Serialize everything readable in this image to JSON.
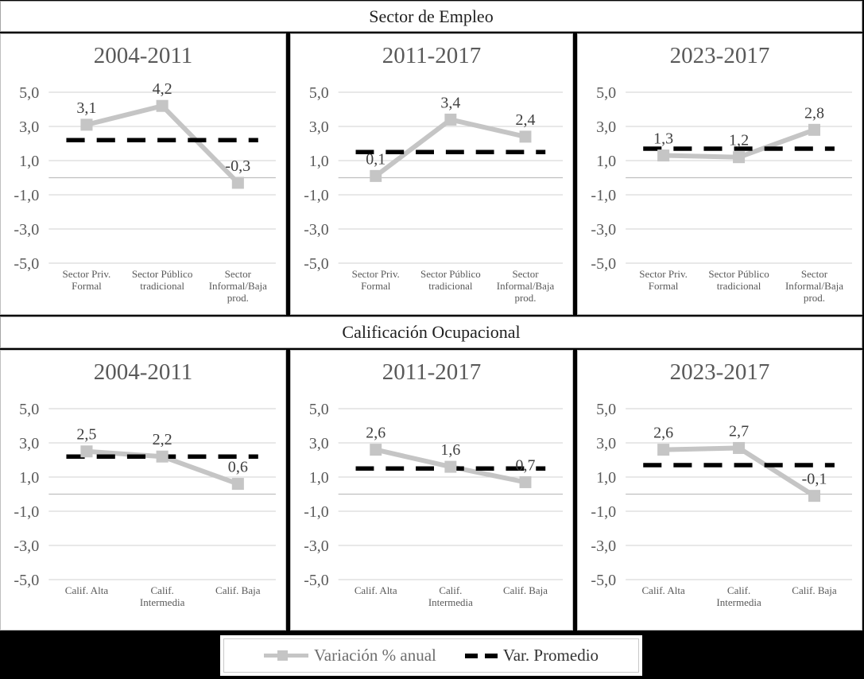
{
  "sections": [
    {
      "title": "Sector de Empleo"
    },
    {
      "title": "Calificación Ocupacional"
    }
  ],
  "legend": {
    "series1_label": "Variación % anual",
    "series2_label": "Var. Promedio"
  },
  "colors": {
    "page_bg": "#000000",
    "panel_bg": "#ffffff",
    "panel_border": "#bfbfbf",
    "band_border": "#a6a6a6",
    "gridline": "#d9d9d9",
    "axis_line": "#c0c0c0",
    "axis_text": "#595959",
    "data_label": "#3f3f3f",
    "series_line": "#c5c5c5",
    "avg_line": "#000000",
    "panel_title": "#595959"
  },
  "chart_data": [
    {
      "type": "line",
      "section": "Sector de Empleo",
      "title": "2004-2011",
      "categories": [
        "Sector Priv. Formal",
        "Sector Público tradicional",
        "Sector Informal/Baja prod."
      ],
      "category_lines": [
        [
          "Sector Priv.",
          "Formal"
        ],
        [
          "Sector Público",
          "tradicional"
        ],
        [
          "Sector",
          "Informal/Baja",
          "prod."
        ]
      ],
      "ylim": [
        -5,
        5
      ],
      "yticks": [
        5,
        3,
        1,
        -1,
        -3,
        -5
      ],
      "ytick_labels": [
        "5,0",
        "3,0",
        "1,0",
        "-1,0",
        "-3,0",
        "-5,0"
      ],
      "series": [
        {
          "name": "Variación % anual",
          "values": [
            3.1,
            4.2,
            -0.3
          ],
          "labels": [
            "3,1",
            "4,2",
            "-0,3"
          ]
        },
        {
          "name": "Var. Promedio",
          "style": "dashed",
          "value": 2.2
        }
      ]
    },
    {
      "type": "line",
      "section": "Sector de Empleo",
      "title": "2011-2017",
      "categories": [
        "Sector Priv. Formal",
        "Sector Público tradicional",
        "Sector Informal/Baja prod."
      ],
      "category_lines": [
        [
          "Sector Priv.",
          "Formal"
        ],
        [
          "Sector Público",
          "tradicional"
        ],
        [
          "Sector",
          "Informal/Baja",
          "prod."
        ]
      ],
      "ylim": [
        -5,
        5
      ],
      "yticks": [
        5,
        3,
        1,
        -1,
        -3,
        -5
      ],
      "ytick_labels": [
        "5,0",
        "3,0",
        "1,0",
        "-1,0",
        "-3,0",
        "-5,0"
      ],
      "series": [
        {
          "name": "Variación % anual",
          "values": [
            0.1,
            3.4,
            2.4
          ],
          "labels": [
            "0,1",
            "3,4",
            "2,4"
          ]
        },
        {
          "name": "Var. Promedio",
          "style": "dashed",
          "value": 1.5
        }
      ]
    },
    {
      "type": "line",
      "section": "Sector de Empleo",
      "title": "2023-2017",
      "categories": [
        "Sector Priv. Formal",
        "Sector Público tradicional",
        "Sector Informal/Baja prod."
      ],
      "category_lines": [
        [
          "Sector Priv.",
          "Formal"
        ],
        [
          "Sector Público",
          "tradicional"
        ],
        [
          "Sector",
          "Informal/Baja",
          "prod."
        ]
      ],
      "ylim": [
        -5,
        5
      ],
      "yticks": [
        5,
        3,
        1,
        -1,
        -3,
        -5
      ],
      "ytick_labels": [
        "5,0",
        "3,0",
        "1,0",
        "-1,0",
        "-3,0",
        "-5,0"
      ],
      "series": [
        {
          "name": "Variación % anual",
          "values": [
            1.3,
            1.2,
            2.8
          ],
          "labels": [
            "1,3",
            "1,2",
            "2,8"
          ]
        },
        {
          "name": "Var. Promedio",
          "style": "dashed",
          "value": 1.7
        }
      ]
    },
    {
      "type": "line",
      "section": "Calificación Ocupacional",
      "title": "2004-2011",
      "categories": [
        "Calif. Alta",
        "Calif. Intermedia",
        "Calif. Baja"
      ],
      "category_lines": [
        [
          "Calif. Alta"
        ],
        [
          "Calif.",
          "Intermedia"
        ],
        [
          "Calif. Baja"
        ]
      ],
      "ylim": [
        -5,
        5
      ],
      "yticks": [
        5,
        3,
        1,
        -1,
        -3,
        -5
      ],
      "ytick_labels": [
        "5,0",
        "3,0",
        "1,0",
        "-1,0",
        "-3,0",
        "-5,0"
      ],
      "series": [
        {
          "name": "Variación % anual",
          "values": [
            2.5,
            2.2,
            0.6
          ],
          "labels": [
            "2,5",
            "2,2",
            "0,6"
          ]
        },
        {
          "name": "Var. Promedio",
          "style": "dashed",
          "value": 2.2
        }
      ]
    },
    {
      "type": "line",
      "section": "Calificación Ocupacional",
      "title": "2011-2017",
      "categories": [
        "Calif. Alta",
        "Calif. Intermedia",
        "Calif. Baja"
      ],
      "category_lines": [
        [
          "Calif. Alta"
        ],
        [
          "Calif.",
          "Intermedia"
        ],
        [
          "Calif. Baja"
        ]
      ],
      "ylim": [
        -5,
        5
      ],
      "yticks": [
        5,
        3,
        1,
        -1,
        -3,
        -5
      ],
      "ytick_labels": [
        "5,0",
        "3,0",
        "1,0",
        "-1,0",
        "-3,0",
        "-5,0"
      ],
      "series": [
        {
          "name": "Variación % anual",
          "values": [
            2.6,
            1.6,
            0.7
          ],
          "labels": [
            "2,6",
            "1,6",
            "0,7"
          ]
        },
        {
          "name": "Var. Promedio",
          "style": "dashed",
          "value": 1.5
        }
      ]
    },
    {
      "type": "line",
      "section": "Calificación Ocupacional",
      "title": "2023-2017",
      "categories": [
        "Calif. Alta",
        "Calif. Intermedia",
        "Calif. Baja"
      ],
      "category_lines": [
        [
          "Calif. Alta"
        ],
        [
          "Calif.",
          "Intermedia"
        ],
        [
          "Calif. Baja"
        ]
      ],
      "ylim": [
        -5,
        5
      ],
      "yticks": [
        5,
        3,
        1,
        -1,
        -3,
        -5
      ],
      "ytick_labels": [
        "5,0",
        "3,0",
        "1,0",
        "-1,0",
        "-3,0",
        "-5,0"
      ],
      "series": [
        {
          "name": "Variación % anual",
          "values": [
            2.6,
            2.7,
            -0.1
          ],
          "labels": [
            "2,6",
            "2,7",
            "-0,1"
          ]
        },
        {
          "name": "Var. Promedio",
          "style": "dashed",
          "value": 1.7
        }
      ]
    }
  ]
}
